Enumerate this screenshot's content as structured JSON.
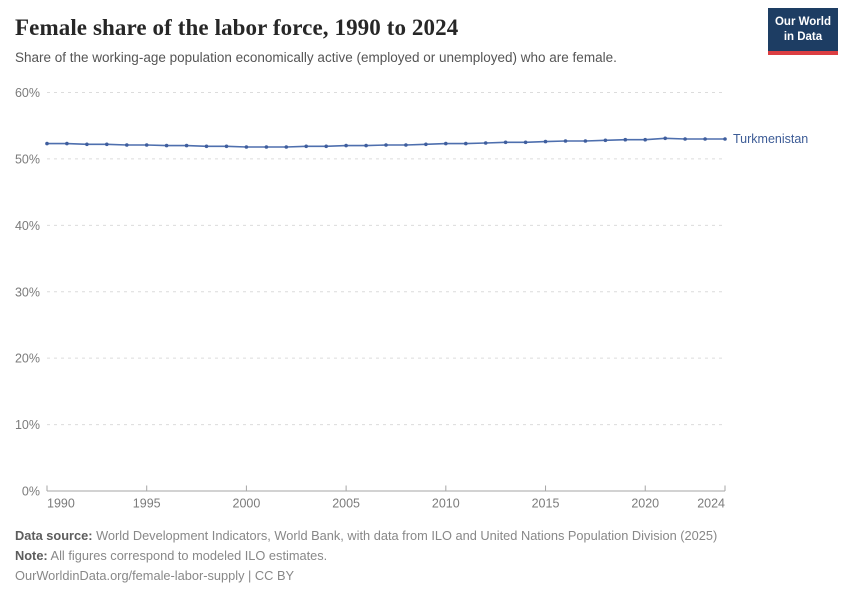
{
  "header": {
    "title": "Female share of the labor force, 1990 to 2024",
    "subtitle": "Share of the working-age population economically active (employed or unemployed) who are female.",
    "logo": {
      "line1": "Our World",
      "line2": "in Data",
      "bg_color": "#1d3d63",
      "bar_color": "#dc3e42"
    }
  },
  "chart_data": {
    "type": "line",
    "title": "Female share of the labor force, 1990 to 2024",
    "xlabel": "",
    "ylabel": "",
    "xlim": [
      1990,
      2024
    ],
    "ylim": [
      0,
      60
    ],
    "x_ticks": [
      1990,
      1995,
      2000,
      2005,
      2010,
      2015,
      2020,
      2024
    ],
    "y_ticks": [
      0,
      10,
      20,
      30,
      40,
      50,
      60
    ],
    "y_tick_suffix": "%",
    "grid": "horizontal-dashed",
    "legend_position": "end-of-line-label",
    "axis_color": "#a5a5a5",
    "gridline_color": "#dcdcdc",
    "series": [
      {
        "name": "Turkmenistan",
        "color": "#4e6fae",
        "dot_color": "#3f5e9e",
        "label_color": "#3d5c96",
        "x": [
          1990,
          1991,
          1992,
          1993,
          1994,
          1995,
          1996,
          1997,
          1998,
          1999,
          2000,
          2001,
          2002,
          2003,
          2004,
          2005,
          2006,
          2007,
          2008,
          2009,
          2010,
          2011,
          2012,
          2013,
          2014,
          2015,
          2016,
          2017,
          2018,
          2019,
          2020,
          2021,
          2022,
          2023,
          2024
        ],
        "values": [
          52.3,
          52.3,
          52.2,
          52.2,
          52.1,
          52.1,
          52.0,
          52.0,
          51.9,
          51.9,
          51.8,
          51.8,
          51.8,
          51.9,
          51.9,
          52.0,
          52.0,
          52.1,
          52.1,
          52.2,
          52.3,
          52.3,
          52.4,
          52.5,
          52.5,
          52.6,
          52.7,
          52.7,
          52.8,
          52.9,
          52.9,
          53.1,
          53.0,
          53.0,
          53.0
        ]
      }
    ]
  },
  "footer": {
    "datasource_label": "Data source:",
    "datasource_text": " World Development Indicators, World Bank, with data from ILO and United Nations Population Division (2025)",
    "note_label": "Note:",
    "note_text": " All figures correspond to modeled ILO estimates.",
    "url_line": "OurWorldinData.org/female-labor-supply | CC BY"
  }
}
